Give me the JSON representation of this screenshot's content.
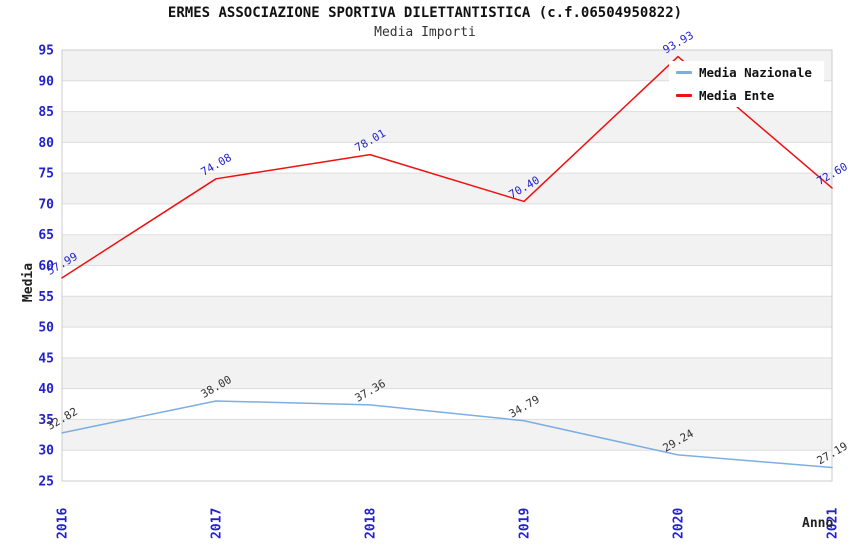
{
  "chart_data": {
    "type": "line",
    "title": "ERMES ASSOCIAZIONE SPORTIVA DILETTANTISTICA (c.f.06504950822)",
    "subtitle": "Media Importi",
    "xlabel": "Anno",
    "ylabel": "Media",
    "x": [
      "2016",
      "2017",
      "2018",
      "2019",
      "2020",
      "2021"
    ],
    "ylim": [
      25,
      95
    ],
    "ytick_step": 5,
    "grid": "horizontal-gridlines-with-alternating-bands",
    "legend_position": "top-right",
    "series": [
      {
        "name": "Media Nazionale",
        "color": "#7CAEE2",
        "label_color": "#333333",
        "values": [
          32.82,
          38.0,
          37.36,
          34.79,
          29.24,
          27.19
        ],
        "labels": [
          "32.82",
          "38.00",
          "37.36",
          "34.79",
          "29.24",
          "27.19"
        ]
      },
      {
        "name": "Media Ente",
        "color": "#EE1111",
        "label_color": "#2222CC",
        "values": [
          57.99,
          74.08,
          78.01,
          70.4,
          93.93,
          72.6
        ],
        "labels": [
          "57.99",
          "74.08",
          "78.01",
          "70.40",
          "93.93",
          "72.60"
        ]
      }
    ],
    "colors": {
      "tick_label": "#2222CC",
      "axis_title": "#222222",
      "title": "#111111",
      "band": "#F2F2F2",
      "grid_line": "#DDDDDD",
      "border": "#CCCCCC",
      "legend_background": "#FFFFFF"
    }
  }
}
